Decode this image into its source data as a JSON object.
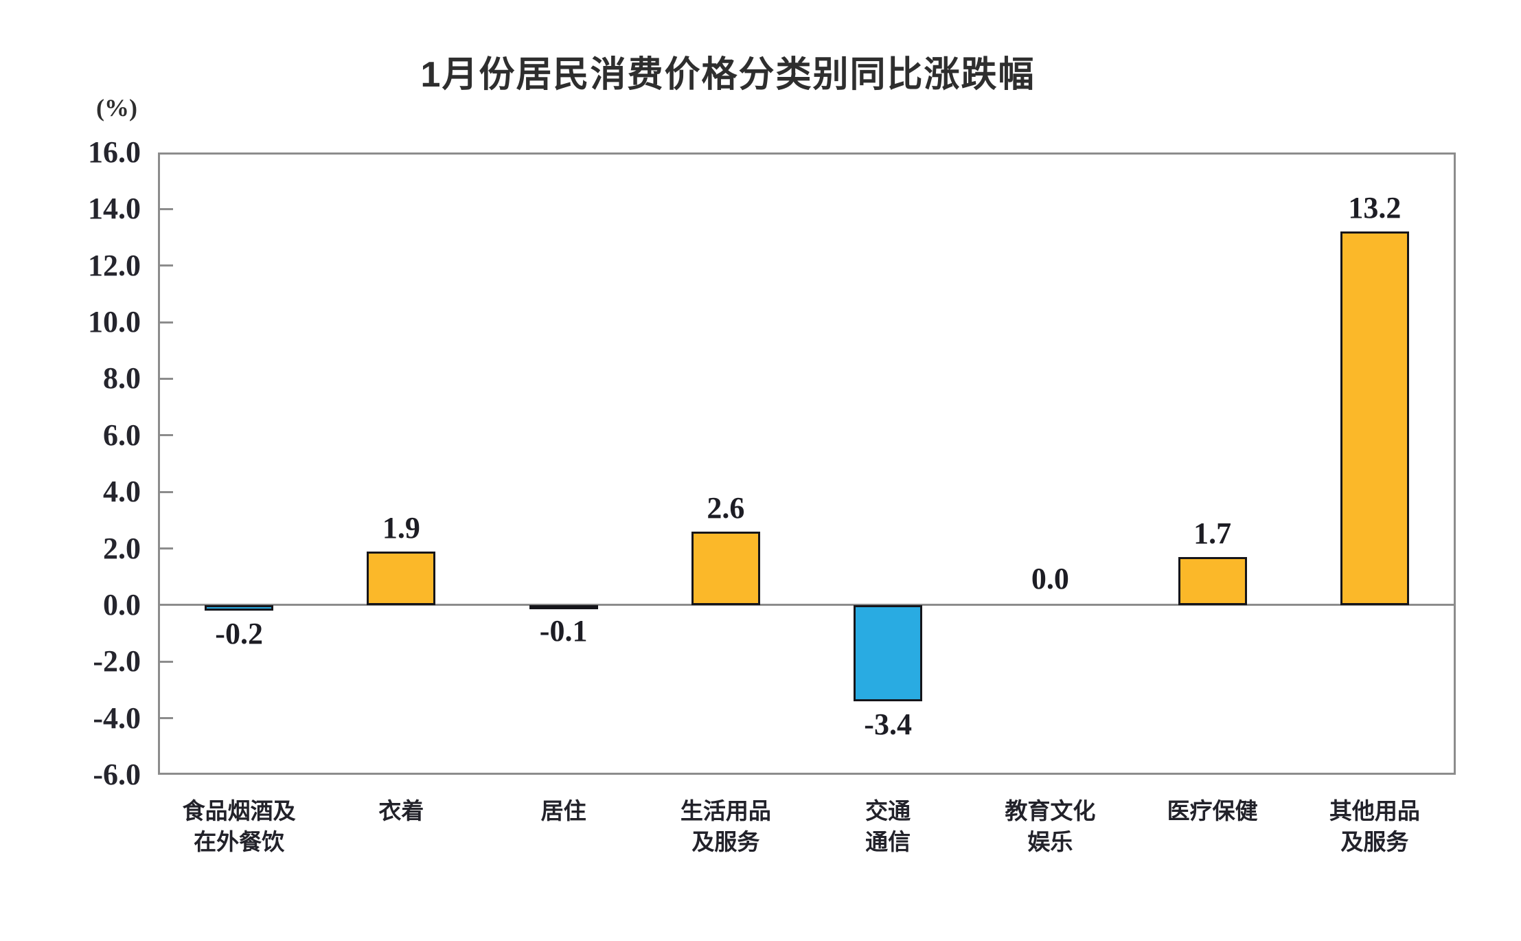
{
  "page": {
    "background_color": "#FFFFFF"
  },
  "chart_data": {
    "type": "bar",
    "title": "1月份居民消费价格分类别同比涨跌幅",
    "unit_label": "(%)",
    "categories": [
      [
        "食品烟酒及",
        "在外餐饮"
      ],
      [
        "衣着"
      ],
      [
        "居住"
      ],
      [
        "生活用品",
        "及服务"
      ],
      [
        "交通",
        "通信"
      ],
      [
        "教育文化",
        "娱乐"
      ],
      [
        "医疗保健"
      ],
      [
        "其他用品",
        "及服务"
      ]
    ],
    "values": [
      -0.2,
      1.9,
      -0.1,
      2.6,
      -3.4,
      0.0,
      1.7,
      13.2
    ],
    "value_labels": [
      "-0.2",
      "1.9",
      "-0.1",
      "2.6",
      "-3.4",
      "0.0",
      "1.7",
      "13.2"
    ],
    "xlabel": "",
    "ylabel": "(%)",
    "ylim": [
      -6.0,
      16.0
    ],
    "ytick_step": 2.0,
    "ytick_labels": [
      "16.0",
      "14.0",
      "12.0",
      "10.0",
      "8.0",
      "6.0",
      "4.0",
      "2.0",
      "0.0",
      "-2.0",
      "-4.0",
      "-6.0"
    ],
    "grid": "off",
    "legend": "none",
    "baseline_at_zero": true,
    "colors": {
      "bar_positive": "#FBB829",
      "bar_negative": "#29ABE2",
      "bar_border": "#15151A",
      "axis_line": "#8C8C8C",
      "text": "#22222A"
    }
  }
}
